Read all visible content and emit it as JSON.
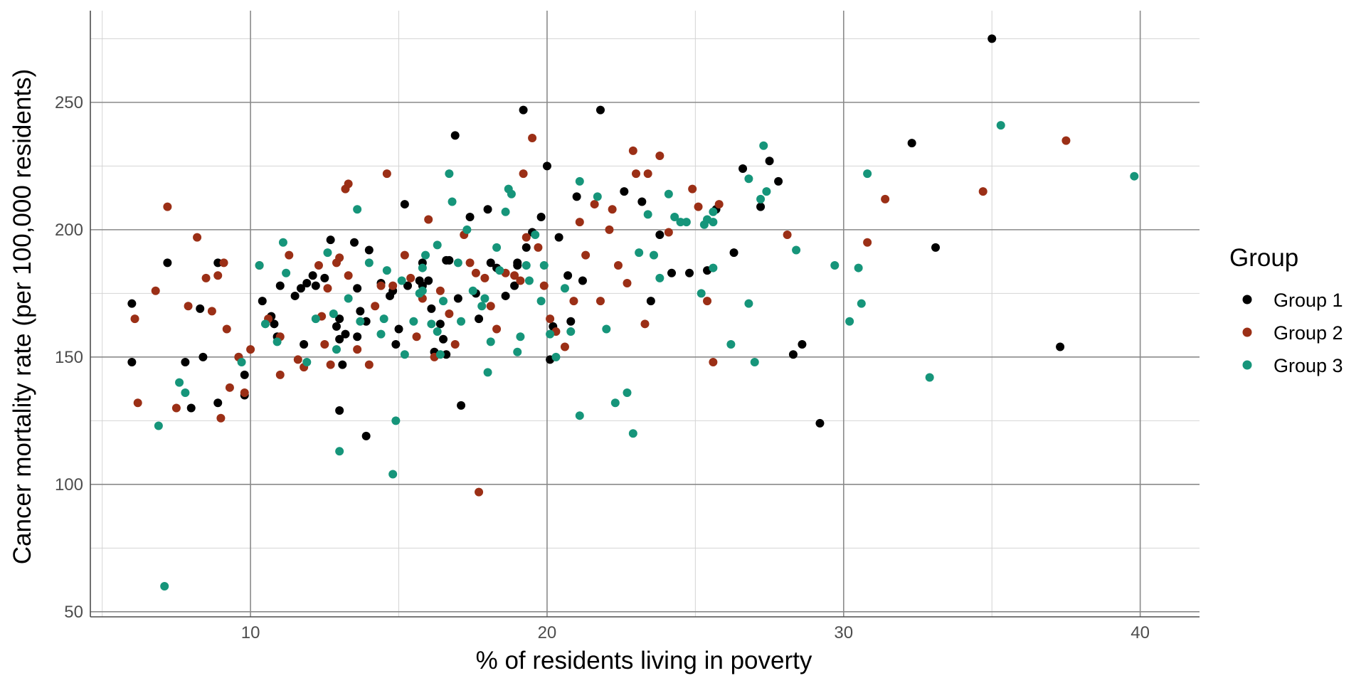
{
  "chart_data": {
    "type": "scatter",
    "title": "",
    "xlabel": "% of residents living in poverty",
    "ylabel": "Cancer mortality rate (per 100,000 residents)",
    "xlim": [
      4.6,
      42.0
    ],
    "ylim": [
      48,
      286
    ],
    "x_ticks": [
      10,
      20,
      30,
      40
    ],
    "y_ticks": [
      50,
      100,
      150,
      200,
      250
    ],
    "grid": true,
    "legend": {
      "title": "Group",
      "position": "right"
    },
    "series": [
      {
        "name": "Group 1",
        "color": "#000000",
        "points": [
          [
            6.0,
            171
          ],
          [
            6.0,
            148
          ],
          [
            7.2,
            187
          ],
          [
            7.8,
            148
          ],
          [
            8.0,
            130
          ],
          [
            8.3,
            169
          ],
          [
            8.4,
            150
          ],
          [
            8.9,
            187
          ],
          [
            8.9,
            132
          ],
          [
            9.6,
            150
          ],
          [
            9.8,
            143
          ],
          [
            9.8,
            135
          ],
          [
            10.4,
            172
          ],
          [
            10.7,
            166
          ],
          [
            10.8,
            163
          ],
          [
            10.9,
            158
          ],
          [
            11.0,
            178
          ],
          [
            11.5,
            174
          ],
          [
            11.7,
            177
          ],
          [
            11.8,
            155
          ],
          [
            11.9,
            179
          ],
          [
            12.1,
            182
          ],
          [
            12.2,
            178
          ],
          [
            12.5,
            181
          ],
          [
            12.7,
            196
          ],
          [
            13.0,
            157
          ],
          [
            12.9,
            162
          ],
          [
            13.0,
            165
          ],
          [
            13.1,
            147
          ],
          [
            13.2,
            159
          ],
          [
            13.0,
            129
          ],
          [
            13.5,
            195
          ],
          [
            13.6,
            177
          ],
          [
            13.6,
            158
          ],
          [
            13.7,
            168
          ],
          [
            13.9,
            164
          ],
          [
            14.0,
            192
          ],
          [
            13.9,
            119
          ],
          [
            14.4,
            179
          ],
          [
            14.7,
            174
          ],
          [
            14.8,
            176
          ],
          [
            14.9,
            155
          ],
          [
            15.0,
            161
          ],
          [
            15.2,
            210
          ],
          [
            15.3,
            178
          ],
          [
            15.7,
            180
          ],
          [
            15.8,
            187
          ],
          [
            15.8,
            178
          ],
          [
            16.0,
            180
          ],
          [
            16.1,
            169
          ],
          [
            16.2,
            152
          ],
          [
            16.4,
            163
          ],
          [
            16.5,
            157
          ],
          [
            16.6,
            188
          ],
          [
            16.6,
            151
          ],
          [
            16.7,
            188
          ],
          [
            16.9,
            237
          ],
          [
            17.0,
            173
          ],
          [
            17.1,
            131
          ],
          [
            17.4,
            205
          ],
          [
            17.6,
            175
          ],
          [
            17.7,
            165
          ],
          [
            18.0,
            208
          ],
          [
            18.1,
            187
          ],
          [
            18.3,
            185
          ],
          [
            18.6,
            174
          ],
          [
            18.9,
            178
          ],
          [
            19.0,
            187
          ],
          [
            19.0,
            186
          ],
          [
            19.2,
            247
          ],
          [
            19.3,
            193
          ],
          [
            19.5,
            199
          ],
          [
            19.8,
            205
          ],
          [
            20.0,
            225
          ],
          [
            20.1,
            149
          ],
          [
            20.2,
            162
          ],
          [
            20.4,
            197
          ],
          [
            20.7,
            182
          ],
          [
            20.8,
            164
          ],
          [
            21.0,
            213
          ],
          [
            21.2,
            180
          ],
          [
            21.8,
            247
          ],
          [
            22.6,
            215
          ],
          [
            23.2,
            211
          ],
          [
            23.5,
            172
          ],
          [
            23.8,
            198
          ],
          [
            24.2,
            183
          ],
          [
            24.8,
            183
          ],
          [
            25.4,
            184
          ],
          [
            25.7,
            208
          ],
          [
            26.3,
            191
          ],
          [
            26.6,
            224
          ],
          [
            27.2,
            209
          ],
          [
            27.5,
            227
          ],
          [
            27.8,
            219
          ],
          [
            28.3,
            151
          ],
          [
            28.6,
            155
          ],
          [
            29.2,
            124
          ],
          [
            32.3,
            234
          ],
          [
            33.1,
            193
          ],
          [
            35.0,
            275
          ],
          [
            37.3,
            154
          ]
        ]
      },
      {
        "name": "Group 2",
        "color": "#9b2f16",
        "points": [
          [
            6.1,
            165
          ],
          [
            6.2,
            132
          ],
          [
            6.8,
            176
          ],
          [
            7.2,
            209
          ],
          [
            7.5,
            130
          ],
          [
            7.9,
            170
          ],
          [
            8.2,
            197
          ],
          [
            8.5,
            181
          ],
          [
            8.7,
            168
          ],
          [
            8.9,
            182
          ],
          [
            9.0,
            126
          ],
          [
            9.1,
            187
          ],
          [
            9.2,
            161
          ],
          [
            9.3,
            138
          ],
          [
            9.6,
            150
          ],
          [
            9.8,
            136
          ],
          [
            10.0,
            153
          ],
          [
            10.3,
            186
          ],
          [
            10.6,
            165
          ],
          [
            11.0,
            158
          ],
          [
            11.0,
            143
          ],
          [
            11.3,
            190
          ],
          [
            11.6,
            149
          ],
          [
            11.8,
            146
          ],
          [
            12.3,
            186
          ],
          [
            12.4,
            166
          ],
          [
            12.5,
            155
          ],
          [
            12.6,
            177
          ],
          [
            12.7,
            147
          ],
          [
            12.9,
            187
          ],
          [
            13.0,
            189
          ],
          [
            13.2,
            216
          ],
          [
            13.3,
            218
          ],
          [
            13.3,
            182
          ],
          [
            13.6,
            153
          ],
          [
            14.0,
            147
          ],
          [
            14.2,
            170
          ],
          [
            14.4,
            178
          ],
          [
            14.6,
            222
          ],
          [
            14.8,
            178
          ],
          [
            15.2,
            190
          ],
          [
            15.4,
            181
          ],
          [
            15.6,
            158
          ],
          [
            15.8,
            173
          ],
          [
            16.0,
            204
          ],
          [
            16.2,
            150
          ],
          [
            16.4,
            176
          ],
          [
            16.7,
            167
          ],
          [
            16.9,
            155
          ],
          [
            17.2,
            198
          ],
          [
            17.4,
            187
          ],
          [
            17.6,
            183
          ],
          [
            17.7,
            97
          ],
          [
            17.9,
            181
          ],
          [
            18.1,
            170
          ],
          [
            18.3,
            161
          ],
          [
            18.6,
            183
          ],
          [
            18.9,
            182
          ],
          [
            19.1,
            180
          ],
          [
            19.2,
            222
          ],
          [
            19.3,
            197
          ],
          [
            19.5,
            236
          ],
          [
            19.7,
            193
          ],
          [
            19.9,
            178
          ],
          [
            20.1,
            165
          ],
          [
            20.3,
            160
          ],
          [
            20.6,
            154
          ],
          [
            20.9,
            172
          ],
          [
            21.1,
            203
          ],
          [
            21.3,
            190
          ],
          [
            21.6,
            210
          ],
          [
            21.8,
            172
          ],
          [
            22.1,
            200
          ],
          [
            22.2,
            208
          ],
          [
            22.4,
            186
          ],
          [
            22.7,
            179
          ],
          [
            22.9,
            231
          ],
          [
            23.0,
            222
          ],
          [
            23.3,
            163
          ],
          [
            23.4,
            222
          ],
          [
            23.8,
            229
          ],
          [
            24.1,
            199
          ],
          [
            24.9,
            216
          ],
          [
            25.1,
            209
          ],
          [
            25.4,
            172
          ],
          [
            25.6,
            148
          ],
          [
            25.8,
            210
          ],
          [
            28.1,
            198
          ],
          [
            30.8,
            195
          ],
          [
            31.4,
            212
          ],
          [
            34.7,
            215
          ],
          [
            37.5,
            235
          ]
        ]
      },
      {
        "name": "Group 3",
        "color": "#16957a",
        "points": [
          [
            6.9,
            123
          ],
          [
            7.1,
            60
          ],
          [
            7.6,
            140
          ],
          [
            7.8,
            136
          ],
          [
            9.7,
            148
          ],
          [
            10.3,
            186
          ],
          [
            10.5,
            163
          ],
          [
            10.9,
            156
          ],
          [
            11.1,
            195
          ],
          [
            11.2,
            183
          ],
          [
            11.9,
            148
          ],
          [
            12.2,
            165
          ],
          [
            12.6,
            191
          ],
          [
            12.8,
            167
          ],
          [
            12.9,
            153
          ],
          [
            13.0,
            113
          ],
          [
            13.3,
            173
          ],
          [
            13.6,
            208
          ],
          [
            13.7,
            164
          ],
          [
            14.0,
            187
          ],
          [
            14.4,
            159
          ],
          [
            14.5,
            165
          ],
          [
            14.6,
            184
          ],
          [
            14.8,
            104
          ],
          [
            14.9,
            125
          ],
          [
            15.1,
            180
          ],
          [
            15.2,
            151
          ],
          [
            15.5,
            164
          ],
          [
            15.7,
            175
          ],
          [
            15.8,
            176
          ],
          [
            15.8,
            185
          ],
          [
            15.9,
            190
          ],
          [
            16.1,
            163
          ],
          [
            16.3,
            160
          ],
          [
            16.3,
            194
          ],
          [
            16.4,
            151
          ],
          [
            16.5,
            172
          ],
          [
            16.7,
            222
          ],
          [
            16.8,
            211
          ],
          [
            17.0,
            187
          ],
          [
            17.1,
            164
          ],
          [
            17.3,
            200
          ],
          [
            17.5,
            176
          ],
          [
            17.8,
            170
          ],
          [
            17.9,
            173
          ],
          [
            18.0,
            144
          ],
          [
            18.1,
            156
          ],
          [
            18.3,
            193
          ],
          [
            18.4,
            184
          ],
          [
            18.6,
            207
          ],
          [
            18.7,
            216
          ],
          [
            18.8,
            214
          ],
          [
            19.0,
            152
          ],
          [
            19.1,
            158
          ],
          [
            19.3,
            186
          ],
          [
            19.4,
            180
          ],
          [
            19.6,
            198
          ],
          [
            19.8,
            172
          ],
          [
            19.9,
            186
          ],
          [
            20.1,
            159
          ],
          [
            20.3,
            150
          ],
          [
            20.6,
            177
          ],
          [
            20.8,
            160
          ],
          [
            21.1,
            219
          ],
          [
            21.1,
            127
          ],
          [
            21.7,
            213
          ],
          [
            22.0,
            161
          ],
          [
            22.3,
            132
          ],
          [
            22.7,
            136
          ],
          [
            22.9,
            120
          ],
          [
            23.1,
            191
          ],
          [
            23.4,
            206
          ],
          [
            23.6,
            190
          ],
          [
            23.8,
            181
          ],
          [
            24.1,
            214
          ],
          [
            24.3,
            205
          ],
          [
            24.5,
            203
          ],
          [
            24.7,
            203
          ],
          [
            25.2,
            175
          ],
          [
            25.3,
            202
          ],
          [
            25.4,
            204
          ],
          [
            25.6,
            185
          ],
          [
            25.6,
            203
          ],
          [
            25.6,
            207
          ],
          [
            26.2,
            155
          ],
          [
            26.8,
            220
          ],
          [
            26.8,
            171
          ],
          [
            27.0,
            148
          ],
          [
            27.2,
            212
          ],
          [
            27.3,
            233
          ],
          [
            27.4,
            215
          ],
          [
            28.4,
            192
          ],
          [
            29.7,
            186
          ],
          [
            30.2,
            164
          ],
          [
            30.5,
            185
          ],
          [
            30.6,
            171
          ],
          [
            30.8,
            222
          ],
          [
            32.9,
            142
          ],
          [
            35.3,
            241
          ],
          [
            39.8,
            221
          ]
        ]
      }
    ]
  }
}
